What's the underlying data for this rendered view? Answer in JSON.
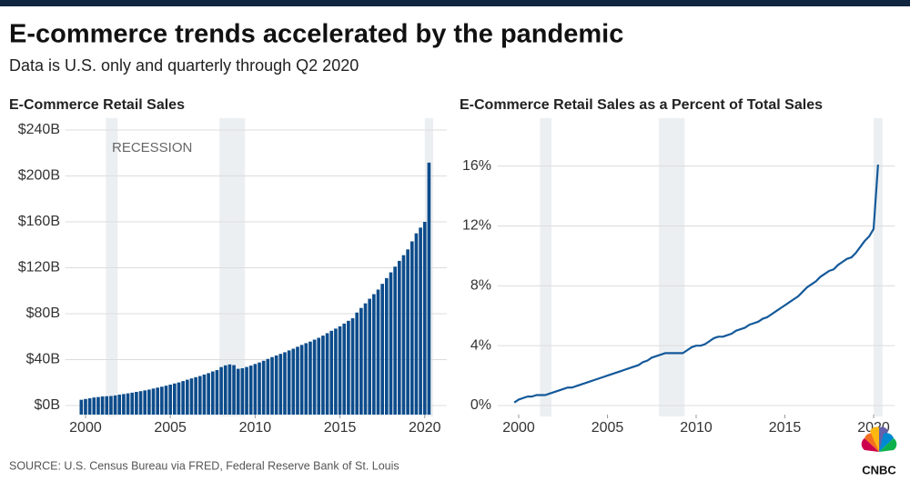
{
  "header": {
    "title": "E-commerce trends accelerated by the pandemic",
    "subtitle": "Data is U.S. only and quarterly through Q2 2020"
  },
  "chart_data": [
    {
      "type": "bar",
      "title": "E-Commerce Retail Sales",
      "color": "#0d4c8b",
      "annotation": "RECESSION",
      "recessions": [
        [
          2001.2,
          2001.9
        ],
        [
          2007.9,
          2009.4
        ],
        [
          2020.0,
          2020.5
        ]
      ],
      "xlim": [
        1998.8,
        2021.3
      ],
      "xticks": [
        2000,
        2005,
        2010,
        2015,
        2020
      ],
      "ylim": [
        0,
        240
      ],
      "yticks": [
        {
          "value": 0,
          "label": "$0B"
        },
        {
          "value": 40,
          "label": "$40B"
        },
        {
          "value": 80,
          "label": "$80B"
        },
        {
          "value": 120,
          "label": "$120B"
        },
        {
          "value": 160,
          "label": "$160B"
        },
        {
          "value": 200,
          "label": "$200B"
        },
        {
          "value": 240,
          "label": "$240B"
        }
      ],
      "grid": true,
      "x": [
        1999.75,
        2000,
        2000.25,
        2000.5,
        2000.75,
        2001,
        2001.25,
        2001.5,
        2001.75,
        2002,
        2002.25,
        2002.5,
        2002.75,
        2003,
        2003.25,
        2003.5,
        2003.75,
        2004,
        2004.25,
        2004.5,
        2004.75,
        2005,
        2005.25,
        2005.5,
        2005.75,
        2006,
        2006.25,
        2006.5,
        2006.75,
        2007,
        2007.25,
        2007.5,
        2007.75,
        2008,
        2008.25,
        2008.5,
        2008.75,
        2009,
        2009.25,
        2009.5,
        2009.75,
        2010,
        2010.25,
        2010.5,
        2010.75,
        2011,
        2011.25,
        2011.5,
        2011.75,
        2012,
        2012.25,
        2012.5,
        2012.75,
        2013,
        2013.25,
        2013.5,
        2013.75,
        2014,
        2014.25,
        2014.5,
        2014.75,
        2015,
        2015.25,
        2015.5,
        2015.75,
        2016,
        2016.25,
        2016.5,
        2016.75,
        2017,
        2017.25,
        2017.5,
        2017.75,
        2018,
        2018.25,
        2018.5,
        2018.75,
        2019,
        2019.25,
        2019.5,
        2019.75,
        2020,
        2020.25
      ],
      "values": [
        5.0,
        5.7,
        6.3,
        7.0,
        7.4,
        7.9,
        8.1,
        8.3,
        8.8,
        9.5,
        10.0,
        10.6,
        11.2,
        11.9,
        12.5,
        13.2,
        13.9,
        14.8,
        15.6,
        16.4,
        17.3,
        18.2,
        19.2,
        20.1,
        21.3,
        22.5,
        23.6,
        24.7,
        25.7,
        27.0,
        28.2,
        29.7,
        30.9,
        33.5,
        35.0,
        35.8,
        35.2,
        32.0,
        32.5,
        33.6,
        34.8,
        36.2,
        37.5,
        39.0,
        40.6,
        42.2,
        43.6,
        45.0,
        46.4,
        48.0,
        49.5,
        51.2,
        52.8,
        54.3,
        55.7,
        57.4,
        59.0,
        60.9,
        63.0,
        65.1,
        67.0,
        69.0,
        71.4,
        73.8,
        76.0,
        81,
        85,
        89,
        93,
        97,
        101,
        106,
        111,
        116,
        121,
        126,
        131,
        136,
        143,
        150,
        155,
        160,
        211.6
      ]
    },
    {
      "type": "line",
      "title": "E-Commerce Retail Sales as a Percent of Total Sales",
      "color": "#14599a",
      "recessions": [
        [
          2001.2,
          2001.85
        ],
        [
          2007.9,
          2009.35
        ],
        [
          2020.0,
          2020.5
        ]
      ],
      "xlim": [
        1998.8,
        2021.2
      ],
      "xticks": [
        2000,
        2005,
        2010,
        2015,
        2020
      ],
      "ylim": [
        0,
        19.2
      ],
      "yticks": [
        {
          "value": 0,
          "label": "0%"
        },
        {
          "value": 4,
          "label": "4%"
        },
        {
          "value": 8,
          "label": "8%"
        },
        {
          "value": 12,
          "label": "12%"
        },
        {
          "value": 16,
          "label": "16%"
        }
      ],
      "grid": true,
      "x": [
        1999.75,
        2000,
        2000.25,
        2000.5,
        2000.75,
        2001,
        2001.25,
        2001.5,
        2001.75,
        2002,
        2002.25,
        2002.5,
        2002.75,
        2003,
        2003.25,
        2003.5,
        2003.75,
        2004,
        2004.25,
        2004.5,
        2004.75,
        2005,
        2005.25,
        2005.5,
        2005.75,
        2006,
        2006.25,
        2006.5,
        2006.75,
        2007,
        2007.25,
        2007.5,
        2007.75,
        2008,
        2008.25,
        2008.5,
        2008.75,
        2009,
        2009.25,
        2009.5,
        2009.75,
        2010,
        2010.25,
        2010.5,
        2010.75,
        2011,
        2011.25,
        2011.5,
        2011.75,
        2012,
        2012.25,
        2012.5,
        2012.75,
        2013,
        2013.25,
        2013.5,
        2013.75,
        2014,
        2014.25,
        2014.5,
        2014.75,
        2015,
        2015.25,
        2015.5,
        2015.75,
        2016,
        2016.25,
        2016.5,
        2016.75,
        2017,
        2017.25,
        2017.5,
        2017.75,
        2018,
        2018.25,
        2018.5,
        2018.75,
        2019,
        2019.25,
        2019.5,
        2019.75,
        2020,
        2020.25
      ],
      "values": [
        0.2,
        0.4,
        0.5,
        0.6,
        0.6,
        0.7,
        0.7,
        0.7,
        0.8,
        0.9,
        1.0,
        1.1,
        1.2,
        1.2,
        1.3,
        1.4,
        1.5,
        1.6,
        1.7,
        1.8,
        1.9,
        2.0,
        2.1,
        2.2,
        2.3,
        2.4,
        2.5,
        2.6,
        2.7,
        2.9,
        3.0,
        3.2,
        3.3,
        3.4,
        3.5,
        3.5,
        3.5,
        3.5,
        3.5,
        3.7,
        3.9,
        4.0,
        4.0,
        4.1,
        4.3,
        4.5,
        4.6,
        4.6,
        4.7,
        4.8,
        5.0,
        5.1,
        5.2,
        5.4,
        5.5,
        5.6,
        5.8,
        5.9,
        6.1,
        6.3,
        6.5,
        6.7,
        6.9,
        7.1,
        7.3,
        7.6,
        7.9,
        8.1,
        8.3,
        8.6,
        8.8,
        9.0,
        9.1,
        9.4,
        9.6,
        9.8,
        9.9,
        10.2,
        10.6,
        11.0,
        11.3,
        11.8,
        16.1
      ]
    }
  ],
  "footer": {
    "source": "SOURCE: U.S. Census Bureau via FRED, Federal Reserve Bank of St. Louis",
    "logo": "CNBC"
  }
}
